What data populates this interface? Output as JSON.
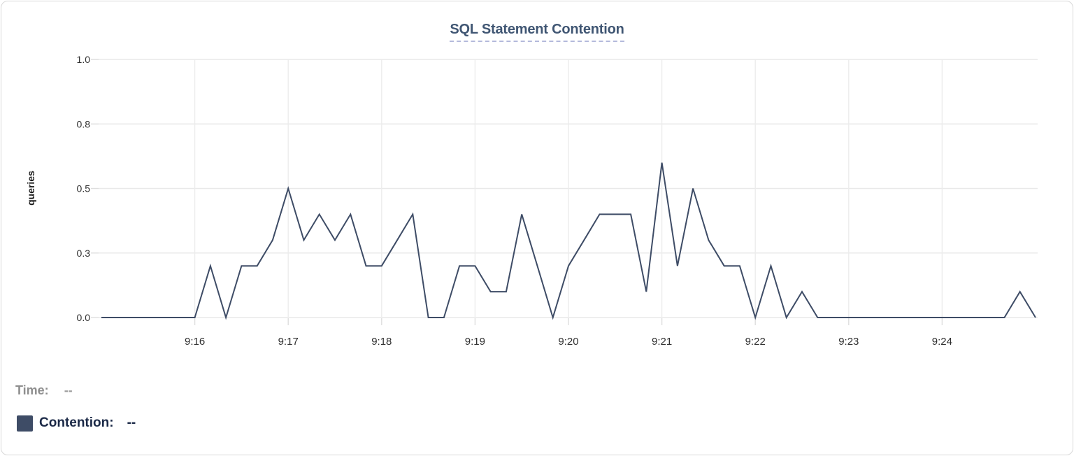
{
  "chart": {
    "title": "SQL Statement Contention",
    "y_axis_label": "queries"
  },
  "chart_data": {
    "type": "line",
    "title": "SQL Statement Contention",
    "xlabel": "",
    "ylabel": "queries",
    "ylim": [
      0,
      1.0
    ],
    "grid": true,
    "legend_position": "bottom-left",
    "yticks": [
      {
        "v": 0,
        "label": "0.0"
      },
      {
        "v": 0.25,
        "label": "0.3"
      },
      {
        "v": 0.5,
        "label": "0.5"
      },
      {
        "v": 0.75,
        "label": "0.8"
      },
      {
        "v": 1.0,
        "label": "1.0"
      }
    ],
    "xticks": [
      {
        "t": 60,
        "label": "9:16"
      },
      {
        "t": 120,
        "label": "9:17"
      },
      {
        "t": 180,
        "label": "9:18"
      },
      {
        "t": 240,
        "label": "9:19"
      },
      {
        "t": 300,
        "label": "9:20"
      },
      {
        "t": 360,
        "label": "9:21"
      },
      {
        "t": 420,
        "label": "9:22"
      },
      {
        "t": 480,
        "label": "9:23"
      },
      {
        "t": 540,
        "label": "9:24"
      }
    ],
    "x_start_time": "9:15:00",
    "x_end_time": "9:25:00",
    "x_total_seconds": 600,
    "point_interval_seconds": 10,
    "series": [
      {
        "name": "Contention",
        "color": "#3e4c66",
        "values": [
          0,
          0,
          0,
          0,
          0,
          0,
          0,
          0.2,
          0,
          0.2,
          0.2,
          0.3,
          0.5,
          0.3,
          0.4,
          0.3,
          0.4,
          0.2,
          0.2,
          0.3,
          0.4,
          0,
          0,
          0.2,
          0.2,
          0.1,
          0.1,
          0.4,
          0.2,
          0,
          0.2,
          0.3,
          0.4,
          0.4,
          0.4,
          0.1,
          0.6,
          0.2,
          0.5,
          0.3,
          0.2,
          0.2,
          0,
          0.2,
          0,
          0.1,
          0,
          0,
          0,
          0,
          0,
          0,
          0,
          0,
          0,
          0,
          0,
          0,
          0,
          0.1,
          0
        ]
      }
    ]
  },
  "legend": {
    "time_label": "Time:",
    "time_value": "--",
    "contention_label": "Contention:",
    "contention_value": "--",
    "swatch_color": "#3e4c66"
  },
  "colors": {
    "line": "#3e4c66",
    "title": "#405673",
    "title_underline": "#b4badb",
    "grid_h": "#e9e9e9",
    "grid_v": "#ececec",
    "tick_mark": "#dedede",
    "tick_text": "#2f2f2f",
    "axis_title_text": "#1a1a1a",
    "panel_border": "#d8d8d8"
  }
}
